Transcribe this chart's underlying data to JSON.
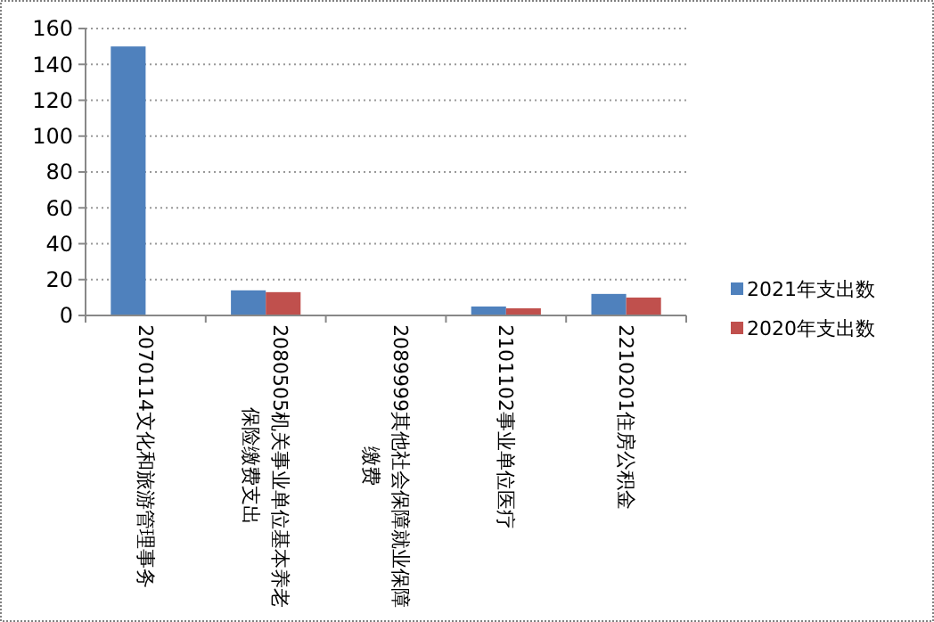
{
  "chart_data": {
    "type": "bar",
    "categories": [
      "2070114文化和旅游管理事务",
      "2080505机关事业单位基本养老保险缴费支出",
      "2089999其他社会保障就业保障缴费",
      "2101102事业单位医疗",
      "2210201住房公积金"
    ],
    "series": [
      {
        "name": "2021年支出数",
        "color": "#4f81bd",
        "values": [
          150,
          14,
          0,
          5,
          12
        ]
      },
      {
        "name": "2020年支出数",
        "color": "#c0504d",
        "values": [
          0,
          13,
          0,
          4,
          10
        ]
      }
    ],
    "ylim": [
      0,
      160
    ],
    "yticks": [
      0,
      20,
      40,
      60,
      80,
      100,
      120,
      140,
      160
    ],
    "grid": "y",
    "legend": "right"
  }
}
